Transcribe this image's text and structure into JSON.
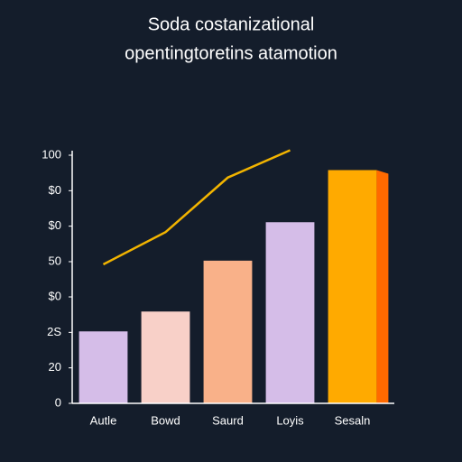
{
  "chart_data": {
    "type": "bar",
    "title": "Soda costanizational",
    "subtitle": "opentingtoretins atamotion",
    "categories": [
      "Autle",
      "Bowd",
      "Saurd",
      "Loyis",
      "Sesaln"
    ],
    "series": [
      {
        "name": "bars",
        "type": "bar",
        "colors": [
          "#d5bde8",
          "#f8d0c8",
          "#f9b189",
          "#d5bde8",
          "#ffaa00"
        ],
        "values": [
          29,
          37,
          57.5,
          73,
          94
        ]
      },
      {
        "name": "line",
        "type": "line",
        "color": "#f2b400",
        "values": [
          56,
          69,
          91,
          102,
          null
        ]
      }
    ],
    "ylim": [
      0,
      100
    ],
    "yticks": [
      0,
      {
        "value": 14.3,
        "label": "20"
      },
      {
        "value": 28.6,
        "label": "2S"
      },
      {
        "value": 42.9,
        "label": "$0"
      },
      {
        "value": 57.1,
        "label": "50"
      },
      {
        "value": 71.4,
        "label": "$0"
      },
      {
        "value": 85.7,
        "label": "$0"
      },
      100
    ]
  }
}
